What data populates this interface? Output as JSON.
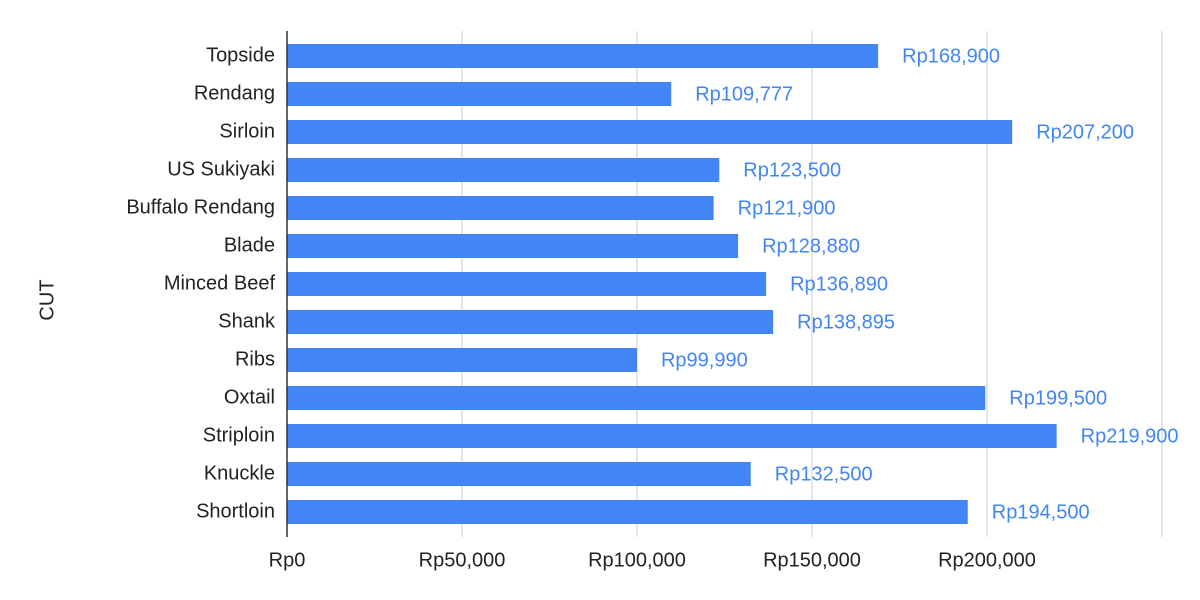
{
  "chart_data": {
    "type": "bar",
    "orientation": "horizontal",
    "y_label": "CUT",
    "categories": [
      "Topside",
      "Rendang",
      "Sirloin",
      "US Sukiyaki",
      "Buffalo Rendang",
      "Blade",
      "Minced Beef",
      "Shank",
      "Ribs",
      "Oxtail",
      "Striploin",
      "Knuckle",
      "Shortloin"
    ],
    "values": [
      168900,
      109777,
      207200,
      123500,
      121900,
      128880,
      136890,
      138895,
      99990,
      199500,
      219900,
      132500,
      194500
    ],
    "value_labels": [
      "Rp168,900",
      "Rp109,777",
      "Rp207,200",
      "Rp123,500",
      "Rp121,900",
      "Rp128,880",
      "Rp136,890",
      "Rp138,895",
      "Rp99,990",
      "Rp199,500",
      "Rp219,900",
      "Rp132,500",
      "Rp194,500"
    ],
    "color": "#4285f4",
    "xlim": [
      0,
      250000
    ],
    "xticks": [
      {
        "value": 0,
        "label": "Rp0"
      },
      {
        "value": 50000,
        "label": "Rp50,000"
      },
      {
        "value": 100000,
        "label": "Rp100,000"
      },
      {
        "value": 150000,
        "label": "Rp150,000"
      },
      {
        "value": 200000,
        "label": "Rp200,000"
      }
    ],
    "grid": true
  }
}
